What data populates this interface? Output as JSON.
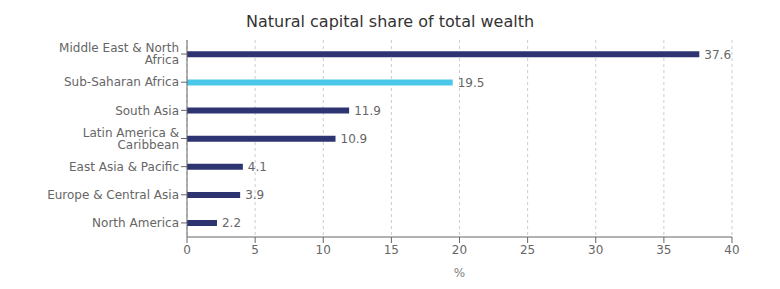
{
  "chart_data": {
    "type": "bar",
    "orientation": "horizontal",
    "title": "Natural capital share of total wealth",
    "categories": [
      "North America",
      "Europe & Central Asia",
      "East Asia & Pacific",
      "Latin America & Caribbean",
      "South Asia",
      "Sub-Saharan Africa",
      "Middle East & North Africa"
    ],
    "values": [
      2.2,
      3.9,
      4.1,
      10.9,
      11.9,
      19.5,
      37.6
    ],
    "colors": [
      "#2e3471",
      "#2e3471",
      "#2e3471",
      "#2e3471",
      "#2e3471",
      "#4bc8e8",
      "#2e3471"
    ],
    "xlabel": "%",
    "xlim": [
      0,
      40
    ],
    "xticks": [
      0,
      5,
      10,
      15,
      20,
      25,
      30,
      35,
      40
    ],
    "grid": true,
    "data_labels": true
  }
}
